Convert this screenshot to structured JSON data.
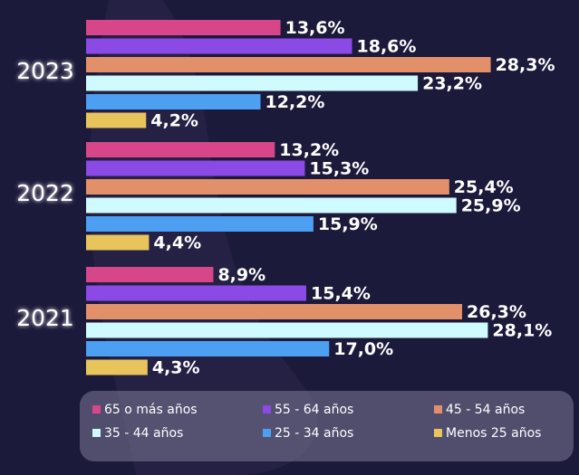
{
  "chart_data": {
    "type": "bar",
    "orientation": "horizontal",
    "categories": [
      "2023",
      "2022",
      "2021"
    ],
    "series": [
      {
        "name": "65 o más años",
        "color": "#d8468a",
        "values": [
          "13,6%",
          "13,2%",
          "8,9%"
        ]
      },
      {
        "name": "55 - 64 años",
        "color": "#8b49e6",
        "values": [
          "18,6%",
          "15,3%",
          "15,4%"
        ]
      },
      {
        "name": "45 - 54 años",
        "color": "#e2906a",
        "values": [
          "28,3%",
          "25,4%",
          "26,3%"
        ]
      },
      {
        "name": "35 - 44 años",
        "color": "#cffbff",
        "values": [
          "23,2%",
          "25,9%",
          "28,1%"
        ]
      },
      {
        "name": "25 - 34 años",
        "color": "#4d9ff2",
        "values": [
          "12,2%",
          "15,9%",
          "17,0%"
        ]
      },
      {
        "name": "Menos 25 años",
        "color": "#e8c45c",
        "values": [
          "4,2%",
          "4,4%",
          "4,3%"
        ]
      }
    ],
    "legend_placement": "bottom",
    "grid": false
  }
}
